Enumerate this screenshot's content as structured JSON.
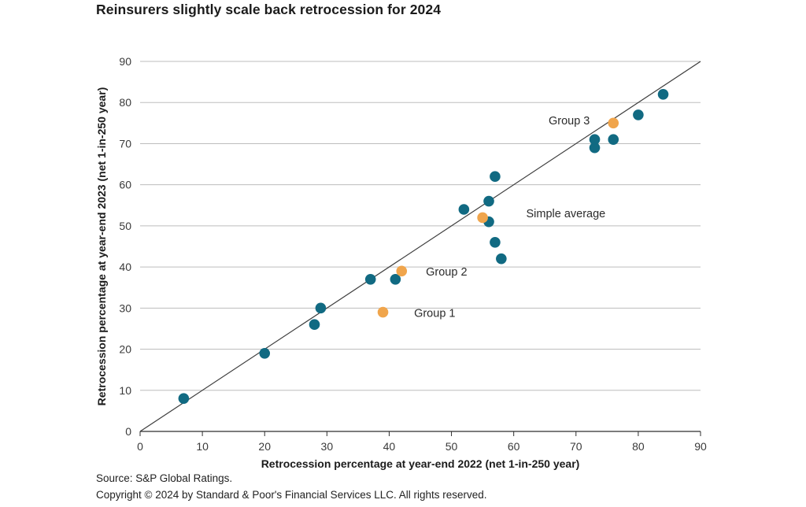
{
  "title": "Reinsurers slightly scale back retrocession for 2024",
  "footer": {
    "source": "Source: S&P Global Ratings.",
    "copyright": "Copyright © 2024 by Standard & Poor's Financial Services LLC. All rights reserved."
  },
  "colors": {
    "teal_points": "#116a82",
    "orange_points": "#f0a54c",
    "gridline": "#bdbdbd",
    "axis": "#2f2f2f",
    "identity_line": "#3d3d3d",
    "title_text": "#1b1b1b",
    "tick_text": "#3a3a3a"
  },
  "chart_data": {
    "type": "scatter",
    "title": "Reinsurers slightly scale back retrocession for 2024",
    "xlabel": "Retrocession percentage at year-end 2022 (net 1-in-250 year)",
    "ylabel": "Retrocession percentage at year-end 2023 (net 1-in-250 year)",
    "xlim": [
      0,
      90
    ],
    "ylim": [
      0,
      90
    ],
    "xticks": [
      0,
      10,
      20,
      30,
      40,
      50,
      60,
      70,
      80,
      90
    ],
    "yticks": [
      0,
      10,
      20,
      30,
      40,
      50,
      60,
      70,
      80,
      90
    ],
    "grid": "horizontal-only",
    "legend_position": "none",
    "reference_line": {
      "name": "identity-line y=x",
      "from": [
        0,
        0
      ],
      "to": [
        90,
        90
      ]
    },
    "series": [
      {
        "name": "individual-reinsurers",
        "marker": "circle",
        "color": "#116a82",
        "points": [
          [
            7,
            8
          ],
          [
            20,
            19
          ],
          [
            28,
            26
          ],
          [
            29,
            30
          ],
          [
            37,
            37
          ],
          [
            41,
            37
          ],
          [
            52,
            54
          ],
          [
            56,
            51
          ],
          [
            56,
            56
          ],
          [
            57,
            46
          ],
          [
            57,
            62
          ],
          [
            58,
            42
          ],
          [
            73,
            69
          ],
          [
            73,
            71
          ],
          [
            76,
            71
          ],
          [
            80,
            77
          ],
          [
            84,
            82
          ]
        ]
      },
      {
        "name": "group-averages",
        "marker": "circle",
        "color": "#f0a54c",
        "points": [
          [
            39,
            29
          ],
          [
            42,
            39
          ],
          [
            55,
            52
          ],
          [
            76,
            75
          ]
        ]
      }
    ],
    "annotations": [
      {
        "text": "Group 1",
        "x": 44.0,
        "y": 28.8,
        "anchor": "start"
      },
      {
        "text": "Group 2",
        "x": 45.9,
        "y": 38.9,
        "anchor": "start"
      },
      {
        "text": "Simple average",
        "x": 62.0,
        "y": 53.0,
        "anchor": "start"
      },
      {
        "text": "Group 3",
        "x": 65.6,
        "y": 75.6,
        "anchor": "start"
      }
    ]
  }
}
